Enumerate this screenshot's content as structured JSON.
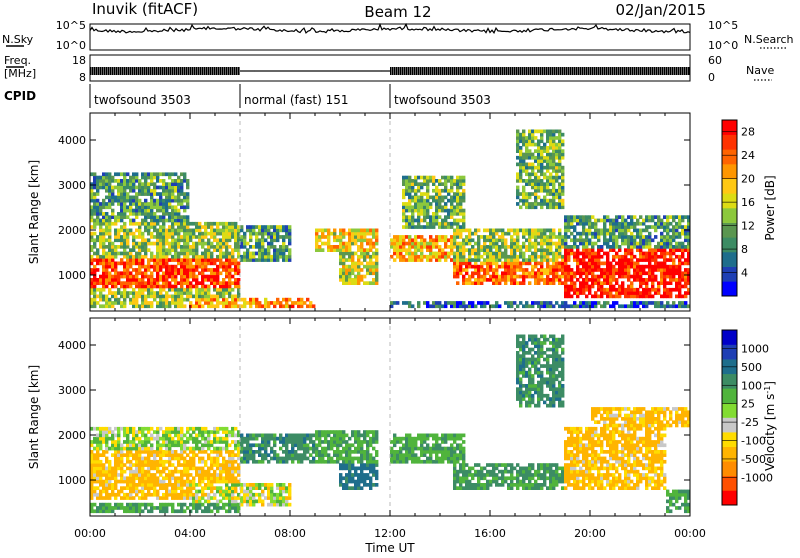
{
  "header": {
    "station": "Inuvik (fitACF)",
    "beam": "Beam 12",
    "date": "02/Jan/2015"
  },
  "noise_panel": {
    "left_label": "N.Sky",
    "left_ticks": [
      "10^5",
      "10^0"
    ],
    "right_ticks": [
      "10^5",
      "10^0"
    ],
    "right_label": "N.Search"
  },
  "freq_panel": {
    "left_label_1": "Freq.",
    "left_label_2": "[MHz]",
    "left_ticks": [
      "18",
      "8"
    ],
    "right_ticks": [
      "60",
      "0"
    ],
    "right_label": "Nave"
  },
  "cpid": {
    "label": "CPID",
    "segments": [
      {
        "name": "twofsound 3503",
        "start_h": 0,
        "end_h": 6
      },
      {
        "name": "normal (fast) 151",
        "start_h": 6,
        "end_h": 12
      },
      {
        "name": "twofsound 3503",
        "start_h": 12,
        "end_h": 24
      }
    ]
  },
  "colors": {
    "power": [
      "#0000ff",
      "#1e3fb4",
      "#1e6e8c",
      "#3c8c64",
      "#5a9650",
      "#8cc83c",
      "#dcdc14",
      "#ffc814",
      "#ff9600",
      "#ff6400",
      "#ff3200",
      "#ff0000"
    ],
    "velocity": [
      "#ff0000",
      "#ff5000",
      "#ff8c00",
      "#ffb400",
      "#ffdc00",
      "#c8c8c8",
      "#82dc32",
      "#50b43c",
      "#3c8c64",
      "#1e6e8c",
      "#1e3fb4",
      "#0000c8"
    ]
  },
  "chart_data": [
    {
      "type": "heatmap",
      "name": "power",
      "x_axis": {
        "range_h": [
          0,
          24
        ],
        "tick_labels": [
          "00:00",
          "04:00",
          "08:00",
          "12:00",
          "16:00",
          "20:00",
          "00:00"
        ],
        "xlabel": "Time UT"
      },
      "y_axis": {
        "ylabel": "Slant Range [km]",
        "range_km": [
          200,
          4600
        ],
        "tick_values": [
          1000,
          2000,
          3000,
          4000
        ]
      },
      "colorbar": {
        "label": "Power [dB]",
        "tick_labels": [
          "4",
          "8",
          "12",
          "16",
          "20",
          "24",
          "28"
        ],
        "range": [
          0,
          30
        ]
      },
      "dashed_time_markers_h": [
        6,
        12
      ],
      "regions": [
        {
          "t": [
            0,
            6
          ],
          "r": [
            700,
            1400
          ],
          "v": 26
        },
        {
          "t": [
            0,
            6
          ],
          "r": [
            1400,
            2200
          ],
          "v": 14
        },
        {
          "t": [
            0,
            6
          ],
          "r": [
            300,
            700
          ],
          "v": 14
        },
        {
          "t": [
            0,
            4
          ],
          "r": [
            2200,
            3300
          ],
          "v": 10
        },
        {
          "t": [
            4,
            9
          ],
          "r": [
            250,
            500
          ],
          "v": 22
        },
        {
          "t": [
            6,
            8
          ],
          "r": [
            1300,
            2100
          ],
          "v": 10
        },
        {
          "t": [
            9,
            11.5
          ],
          "r": [
            1500,
            2000
          ],
          "v": 18
        },
        {
          "t": [
            10,
            11.5
          ],
          "r": [
            800,
            1500
          ],
          "v": 16
        },
        {
          "t": [
            12,
            14.5
          ],
          "r": [
            1300,
            1900
          ],
          "v": 20
        },
        {
          "t": [
            12.5,
            15
          ],
          "r": [
            2000,
            3200
          ],
          "v": 12
        },
        {
          "t": [
            14.5,
            19
          ],
          "r": [
            800,
            1300
          ],
          "v": 24
        },
        {
          "t": [
            14.5,
            19
          ],
          "r": [
            1300,
            2000
          ],
          "v": 14
        },
        {
          "t": [
            17,
            19
          ],
          "r": [
            2500,
            4200
          ],
          "v": 12
        },
        {
          "t": [
            19,
            24
          ],
          "r": [
            500,
            1600
          ],
          "v": 28
        },
        {
          "t": [
            19,
            24
          ],
          "r": [
            1600,
            2300
          ],
          "v": 10
        },
        {
          "t": [
            12,
            24
          ],
          "r": [
            250,
            450
          ],
          "v": 6
        }
      ]
    },
    {
      "type": "heatmap",
      "name": "velocity",
      "x_axis": {
        "range_h": [
          0,
          24
        ],
        "tick_labels": [
          "00:00",
          "04:00",
          "08:00",
          "12:00",
          "16:00",
          "20:00",
          "00:00"
        ],
        "xlabel": "Time UT"
      },
      "y_axis": {
        "ylabel": "Slant Range [km]",
        "range_km": [
          200,
          4600
        ],
        "tick_values": [
          1000,
          2000,
          3000,
          4000
        ]
      },
      "colorbar": {
        "label": "Velocity [m s^-1]",
        "tick_labels": [
          "-1000",
          "-500",
          "-100",
          "-25",
          "25",
          "100",
          "500",
          "1000"
        ],
        "tick_values": [
          -1000,
          -500,
          -100,
          -25,
          25,
          100,
          500,
          1000
        ]
      },
      "dashed_time_markers_h": [
        6,
        12
      ],
      "regions": [
        {
          "t": [
            0,
            6
          ],
          "r": [
            600,
            1700
          ],
          "v": -150
        },
        {
          "t": [
            0,
            6
          ],
          "r": [
            1700,
            2200
          ],
          "v": 50
        },
        {
          "t": [
            4,
            8
          ],
          "r": [
            400,
            900
          ],
          "v": 0
        },
        {
          "t": [
            0,
            6
          ],
          "r": [
            250,
            500
          ],
          "v": 300
        },
        {
          "t": [
            6,
            9
          ],
          "r": [
            1400,
            2000
          ],
          "v": 400
        },
        {
          "t": [
            9,
            11.5
          ],
          "r": [
            1400,
            2100
          ],
          "v": 250
        },
        {
          "t": [
            10,
            11.5
          ],
          "r": [
            800,
            1400
          ],
          "v": 600
        },
        {
          "t": [
            12,
            15
          ],
          "r": [
            1400,
            2000
          ],
          "v": 250
        },
        {
          "t": [
            14.5,
            19
          ],
          "r": [
            800,
            1400
          ],
          "v": 350
        },
        {
          "t": [
            17,
            19
          ],
          "r": [
            2600,
            4200
          ],
          "v": 400
        },
        {
          "t": [
            19,
            23
          ],
          "r": [
            800,
            2200
          ],
          "v": -150
        },
        {
          "t": [
            20,
            24
          ],
          "r": [
            2200,
            2600
          ],
          "v": -150
        },
        {
          "t": [
            23,
            24
          ],
          "r": [
            300,
            800
          ],
          "v": 300
        }
      ]
    }
  ]
}
